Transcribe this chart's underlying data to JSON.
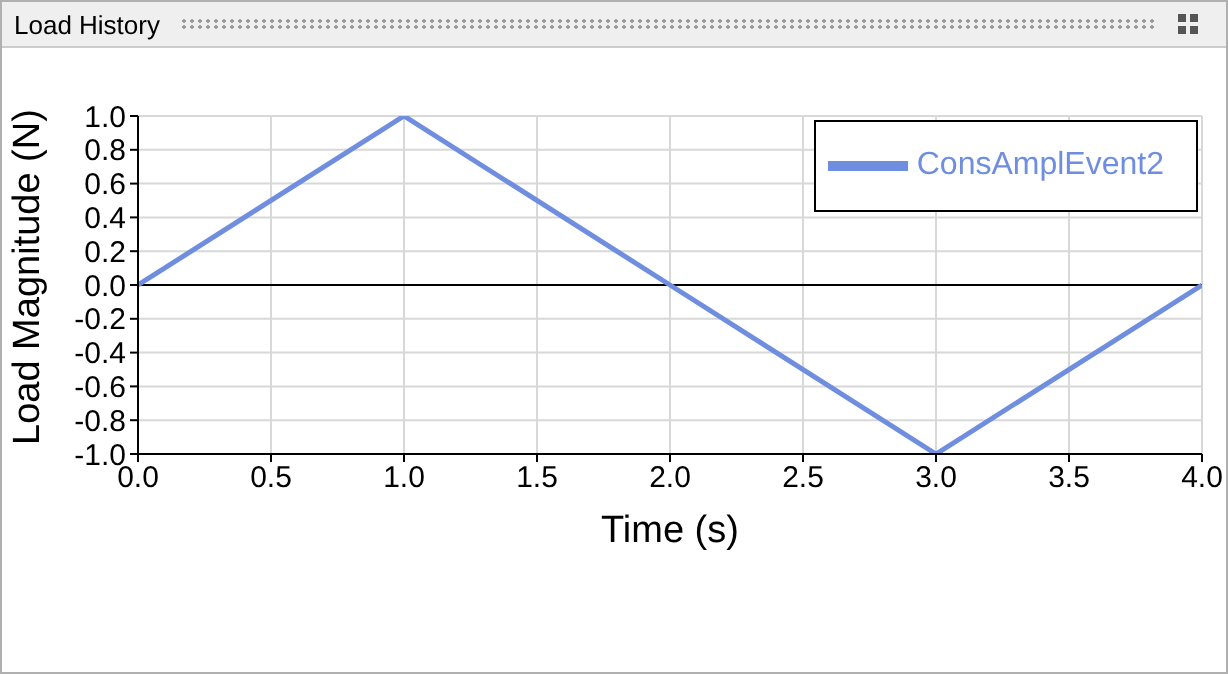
{
  "chart_data": {
    "type": "line",
    "title": "Load History",
    "xlabel": "Time (s)",
    "ylabel": "Load Magnitude (N)",
    "x": [
      0,
      1,
      2,
      3,
      4
    ],
    "series": [
      {
        "name": "ConsAmplEvent2",
        "color": "#6f8ee0",
        "values": [
          0,
          1,
          0,
          -1,
          0
        ]
      }
    ],
    "xlim": [
      0,
      4
    ],
    "xticks": [
      {
        "value": 0,
        "label": "0.0"
      },
      {
        "value": 0.5,
        "label": "0.5"
      },
      {
        "value": 1,
        "label": "1.0"
      },
      {
        "value": 1.5,
        "label": "1.5"
      },
      {
        "value": 2,
        "label": "2.0"
      },
      {
        "value": 2.5,
        "label": "2.5"
      },
      {
        "value": 3,
        "label": "3.0"
      },
      {
        "value": 3.5,
        "label": "3.5"
      },
      {
        "value": 4,
        "label": "4.0"
      }
    ],
    "ylim": [
      -1,
      1
    ],
    "yticks": [
      {
        "value": -1,
        "label": "-1.0"
      },
      {
        "value": -0.8,
        "label": "-0.8"
      },
      {
        "value": -0.6,
        "label": "-0.6"
      },
      {
        "value": -0.4,
        "label": "-0.4"
      },
      {
        "value": -0.2,
        "label": "-0.2"
      },
      {
        "value": 0,
        "label": "0.0"
      },
      {
        "value": 0.2,
        "label": "0.2"
      },
      {
        "value": 0.4,
        "label": "0.4"
      },
      {
        "value": 0.6,
        "label": "0.6"
      },
      {
        "value": 0.8,
        "label": "0.8"
      },
      {
        "value": 1,
        "label": "1.0"
      }
    ],
    "ref_lines": [
      {
        "axis": "y",
        "value": 0,
        "color": "#000000"
      }
    ],
    "grid": true,
    "legend": "top right",
    "marker": "none",
    "line_style": "solid"
  }
}
